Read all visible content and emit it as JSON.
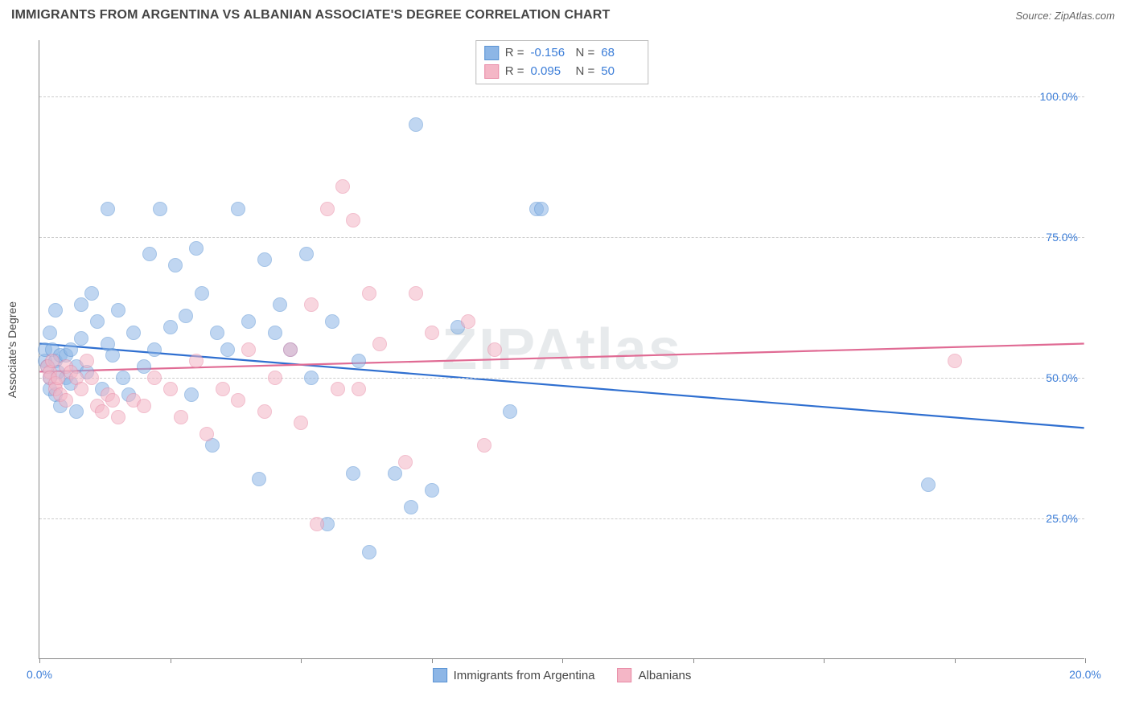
{
  "header": {
    "title": "IMMIGRANTS FROM ARGENTINA VS ALBANIAN ASSOCIATE'S DEGREE CORRELATION CHART",
    "source": "Source: ZipAtlas.com"
  },
  "watermark": "ZIPAtlas",
  "chart": {
    "type": "scatter",
    "y_axis_label": "Associate's Degree",
    "xlim": [
      0,
      20
    ],
    "ylim": [
      0,
      110
    ],
    "x_ticks": [
      0,
      2.5,
      5,
      7.5,
      10,
      12.5,
      15,
      17.5,
      20
    ],
    "x_tick_labels": {
      "0": "0.0%",
      "20": "20.0%"
    },
    "y_gridlines": [
      25,
      50,
      75,
      100
    ],
    "y_tick_labels": {
      "25": "25.0%",
      "50": "50.0%",
      "75": "75.0%",
      "100": "100.0%"
    },
    "background_color": "#ffffff",
    "grid_color": "#cccccc",
    "axis_color": "#888888",
    "label_color": "#3b7dd8",
    "marker_radius": 9,
    "marker_opacity": 0.55,
    "series": [
      {
        "name": "Immigrants from Argentina",
        "fill_color": "#8db6e6",
        "stroke_color": "#5a93d4",
        "trend_color": "#2f6fd0",
        "trend_width": 2.2,
        "R": "-0.156",
        "N": "68",
        "trend": {
          "y_at_x0": 56,
          "y_at_xmax": 41
        },
        "points": [
          [
            0.1,
            53
          ],
          [
            0.1,
            55
          ],
          [
            0.15,
            52
          ],
          [
            0.2,
            50
          ],
          [
            0.2,
            48
          ],
          [
            0.2,
            58
          ],
          [
            0.25,
            55
          ],
          [
            0.3,
            53
          ],
          [
            0.3,
            47
          ],
          [
            0.3,
            62
          ],
          [
            0.35,
            51
          ],
          [
            0.4,
            54
          ],
          [
            0.4,
            45
          ],
          [
            0.5,
            54
          ],
          [
            0.5,
            50
          ],
          [
            0.6,
            55
          ],
          [
            0.6,
            49
          ],
          [
            0.7,
            52
          ],
          [
            0.7,
            44
          ],
          [
            0.8,
            57
          ],
          [
            0.8,
            63
          ],
          [
            0.9,
            51
          ],
          [
            1.0,
            65
          ],
          [
            1.1,
            60
          ],
          [
            1.2,
            48
          ],
          [
            1.3,
            56
          ],
          [
            1.3,
            80
          ],
          [
            1.4,
            54
          ],
          [
            1.5,
            62
          ],
          [
            1.6,
            50
          ],
          [
            1.7,
            47
          ],
          [
            1.8,
            58
          ],
          [
            2.0,
            52
          ],
          [
            2.1,
            72
          ],
          [
            2.2,
            55
          ],
          [
            2.3,
            80
          ],
          [
            2.5,
            59
          ],
          [
            2.6,
            70
          ],
          [
            2.8,
            61
          ],
          [
            2.9,
            47
          ],
          [
            3.0,
            73
          ],
          [
            3.1,
            65
          ],
          [
            3.3,
            38
          ],
          [
            3.4,
            58
          ],
          [
            3.6,
            55
          ],
          [
            3.8,
            80
          ],
          [
            4.0,
            60
          ],
          [
            4.2,
            32
          ],
          [
            4.3,
            71
          ],
          [
            4.5,
            58
          ],
          [
            4.6,
            63
          ],
          [
            4.8,
            55
          ],
          [
            5.1,
            72
          ],
          [
            5.2,
            50
          ],
          [
            5.5,
            24
          ],
          [
            5.6,
            60
          ],
          [
            6.0,
            33
          ],
          [
            6.1,
            53
          ],
          [
            6.3,
            19
          ],
          [
            6.8,
            33
          ],
          [
            7.1,
            27
          ],
          [
            7.2,
            95
          ],
          [
            7.5,
            30
          ],
          [
            8.0,
            59
          ],
          [
            9.0,
            44
          ],
          [
            9.5,
            80
          ],
          [
            9.6,
            80
          ],
          [
            17.0,
            31
          ]
        ]
      },
      {
        "name": "Albanians",
        "fill_color": "#f4b6c6",
        "stroke_color": "#e88aa6",
        "trend_color": "#e06b94",
        "trend_width": 2.2,
        "R": "0.095",
        "N": "50",
        "trend": {
          "y_at_x0": 51,
          "y_at_xmax": 56
        },
        "points": [
          [
            0.15,
            52
          ],
          [
            0.2,
            51
          ],
          [
            0.2,
            50
          ],
          [
            0.25,
            53
          ],
          [
            0.3,
            49
          ],
          [
            0.3,
            48
          ],
          [
            0.35,
            50
          ],
          [
            0.4,
            47
          ],
          [
            0.5,
            52
          ],
          [
            0.5,
            46
          ],
          [
            0.6,
            51
          ],
          [
            0.7,
            50
          ],
          [
            0.8,
            48
          ],
          [
            0.9,
            53
          ],
          [
            1.0,
            50
          ],
          [
            1.1,
            45
          ],
          [
            1.2,
            44
          ],
          [
            1.3,
            47
          ],
          [
            1.4,
            46
          ],
          [
            1.5,
            43
          ],
          [
            1.8,
            46
          ],
          [
            2.0,
            45
          ],
          [
            2.2,
            50
          ],
          [
            2.5,
            48
          ],
          [
            2.7,
            43
          ],
          [
            3.0,
            53
          ],
          [
            3.2,
            40
          ],
          [
            3.5,
            48
          ],
          [
            3.8,
            46
          ],
          [
            4.0,
            55
          ],
          [
            4.3,
            44
          ],
          [
            4.5,
            50
          ],
          [
            4.8,
            55
          ],
          [
            5.0,
            42
          ],
          [
            5.2,
            63
          ],
          [
            5.3,
            24
          ],
          [
            5.5,
            80
          ],
          [
            5.7,
            48
          ],
          [
            5.8,
            84
          ],
          [
            6.0,
            78
          ],
          [
            6.1,
            48
          ],
          [
            6.3,
            65
          ],
          [
            6.5,
            56
          ],
          [
            7.0,
            35
          ],
          [
            7.2,
            65
          ],
          [
            7.5,
            58
          ],
          [
            8.2,
            60
          ],
          [
            8.5,
            38
          ],
          [
            8.7,
            55
          ],
          [
            17.5,
            53
          ]
        ]
      }
    ]
  },
  "stats_box": {
    "r_label": "R =",
    "n_label": "N ="
  },
  "legend": {
    "series1": "Immigrants from Argentina",
    "series2": "Albanians"
  }
}
